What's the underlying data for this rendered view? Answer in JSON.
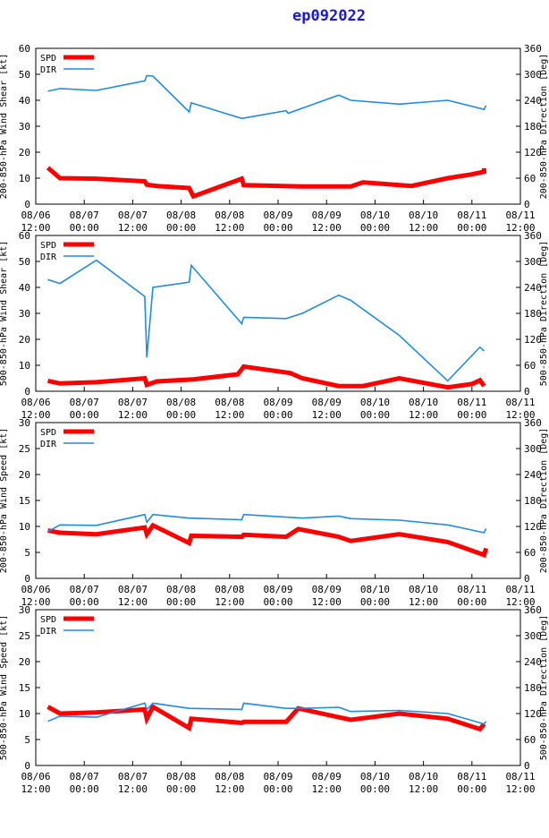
{
  "title": "ep092022",
  "colors": {
    "spd": "#ff0000",
    "dir": "#1e8ce6",
    "axis": "#000000",
    "title": "#1a1ad6"
  },
  "x_ticks": [
    {
      "t": 0,
      "l1": "08/06",
      "l2": "12:00"
    },
    {
      "t": 12,
      "l1": "08/07",
      "l2": "00:00"
    },
    {
      "t": 24,
      "l1": "08/07",
      "l2": "12:00"
    },
    {
      "t": 36,
      "l1": "08/08",
      "l2": "00:00"
    },
    {
      "t": 48,
      "l1": "08/08",
      "l2": "12:00"
    },
    {
      "t": 60,
      "l1": "08/09",
      "l2": "00:00"
    },
    {
      "t": 72,
      "l1": "08/09",
      "l2": "12:00"
    },
    {
      "t": 84,
      "l1": "08/10",
      "l2": "00:00"
    },
    {
      "t": 96,
      "l1": "08/10",
      "l2": "12:00"
    },
    {
      "t": 108,
      "l1": "08/11",
      "l2": "00:00"
    },
    {
      "t": 120,
      "l1": "08/11",
      "l2": "12:00"
    }
  ],
  "chart_data": [
    {
      "type": "line",
      "title": "200-850-hPa Wind Shear",
      "ylabel": "200-850-hPa Wind Shear [kt]",
      "y2label": "200-850-hPa Direction [Deg]",
      "xlim": [
        0,
        120
      ],
      "ylim": [
        0,
        60
      ],
      "y2lim": [
        0,
        360
      ],
      "yticks": [
        0,
        10,
        20,
        30,
        40,
        50,
        60
      ],
      "y2ticks": [
        0,
        60,
        120,
        180,
        240,
        300,
        360
      ],
      "legend": [
        "SPD",
        "DIR"
      ],
      "series": [
        {
          "name": "SPD",
          "axis": "left",
          "x": [
            3,
            6,
            15,
            27,
            27.5,
            30,
            38,
            39,
            51,
            51.5,
            66,
            78,
            81,
            93,
            102,
            108,
            111,
            111
          ],
          "y": [
            14,
            10,
            9.8,
            8.8,
            7.5,
            7,
            6.2,
            3,
            9.8,
            7.3,
            6.8,
            6.8,
            8.4,
            7,
            10,
            11.5,
            12.5,
            13.8
          ]
        },
        {
          "name": "DIR",
          "axis": "left",
          "x": [
            3,
            6,
            15,
            27,
            27.5,
            29,
            38,
            38.5,
            51,
            62,
            62.5,
            75,
            78,
            90,
            102,
            111,
            111.5
          ],
          "y": [
            43.5,
            44.5,
            43.8,
            47.5,
            49.5,
            49.3,
            35.5,
            39,
            33,
            36,
            35,
            42,
            40,
            38.5,
            40,
            36.5,
            38
          ]
        }
      ]
    },
    {
      "type": "line",
      "title": "500-850-hPa Wind Shear",
      "ylabel": "500-850-hPa Wind Shear [kt]",
      "y2label": "500-850-hPa Direction [Deg]",
      "xlim": [
        0,
        120
      ],
      "ylim": [
        0,
        60
      ],
      "y2lim": [
        0,
        360
      ],
      "yticks": [
        0,
        10,
        20,
        30,
        40,
        50,
        60
      ],
      "y2ticks": [
        0,
        60,
        120,
        180,
        240,
        300,
        360
      ],
      "legend": [
        "SPD",
        "DIR"
      ],
      "series": [
        {
          "name": "SPD",
          "axis": "left",
          "x": [
            3,
            6,
            15,
            27,
            27.5,
            30,
            39,
            50,
            51,
            51.5,
            63,
            66,
            75,
            81,
            90,
            102,
            108,
            110,
            111
          ],
          "y": [
            4,
            3,
            3.5,
            5,
            2.5,
            3.8,
            4.6,
            6.5,
            8.5,
            9.5,
            7,
            5,
            2,
            2,
            5,
            1.5,
            2.8,
            4.2,
            2
          ]
        },
        {
          "name": "DIR",
          "axis": "left",
          "x": [
            3,
            6,
            15,
            27,
            27.5,
            29,
            38,
            38.5,
            51,
            51.5,
            62,
            66,
            75,
            78,
            90,
            102,
            110,
            111
          ],
          "y": [
            43,
            41.5,
            50.5,
            36.5,
            13,
            40,
            42,
            48.5,
            26,
            28.5,
            28,
            30,
            37,
            35,
            21.5,
            4,
            17,
            15.5
          ]
        }
      ]
    },
    {
      "type": "line",
      "title": "200-850-hPa Wind Speed",
      "ylabel": "200-850-hPa Wind Speed [kt]",
      "y2label": "200-850-hPa Direction [Deg]",
      "xlim": [
        0,
        120
      ],
      "ylim": [
        0,
        30
      ],
      "y2lim": [
        0,
        360
      ],
      "yticks": [
        0,
        5,
        10,
        15,
        20,
        25,
        30
      ],
      "y2ticks": [
        0,
        60,
        120,
        180,
        240,
        300,
        360
      ],
      "legend": [
        "SPD",
        "DIR"
      ],
      "series": [
        {
          "name": "SPD",
          "axis": "left",
          "x": [
            3,
            6,
            15,
            27,
            27.5,
            29,
            38,
            38.5,
            51,
            51.5,
            62,
            65,
            75,
            78,
            90,
            102,
            111,
            111.5
          ],
          "y": [
            9.2,
            8.8,
            8.5,
            9.8,
            8.5,
            10.2,
            6.8,
            8.2,
            8,
            8.4,
            8,
            9.5,
            8,
            7.2,
            8.5,
            7,
            4.5,
            5.8
          ]
        },
        {
          "name": "DIR",
          "axis": "left",
          "x": [
            3,
            6,
            15,
            27,
            27.5,
            29,
            38,
            51,
            51.5,
            62,
            66,
            75,
            78,
            90,
            102,
            111,
            111.5
          ],
          "y": [
            9,
            10.3,
            10.2,
            12.3,
            10.8,
            12.3,
            11.6,
            11.3,
            12.3,
            11.8,
            11.6,
            12,
            11.5,
            11.2,
            10.3,
            8.8,
            9.6
          ]
        }
      ]
    },
    {
      "type": "line",
      "title": "500-850-hPa Wind Speed",
      "ylabel": "500-850-hPa Wind Speed [kt]",
      "y2label": "500-850-hPa Direction [Deg]",
      "xlim": [
        0,
        120
      ],
      "ylim": [
        0,
        30
      ],
      "y2lim": [
        0,
        360
      ],
      "yticks": [
        0,
        5,
        10,
        15,
        20,
        25,
        30
      ],
      "y2ticks": [
        0,
        60,
        120,
        180,
        240,
        300,
        360
      ],
      "legend": [
        "SPD",
        "DIR"
      ],
      "series": [
        {
          "name": "SPD",
          "axis": "left",
          "x": [
            3,
            6,
            15,
            27,
            27.5,
            29,
            38,
            38.5,
            51,
            51.5,
            62,
            65,
            78,
            90,
            102,
            110,
            111
          ],
          "y": [
            11.3,
            10,
            10.2,
            10.8,
            9,
            11.3,
            7.2,
            9,
            8.2,
            8.4,
            8.4,
            11,
            8.8,
            10,
            9,
            7,
            8
          ]
        },
        {
          "name": "DIR",
          "axis": "left",
          "x": [
            3,
            6,
            15,
            27,
            27.5,
            29,
            38,
            51,
            51.5,
            62,
            66,
            75,
            78,
            90,
            102,
            111,
            111.5
          ],
          "y": [
            8.5,
            9.5,
            9.3,
            12,
            10.8,
            12,
            11,
            10.8,
            12,
            11,
            11,
            11.2,
            10.4,
            10.6,
            10,
            8,
            8.5
          ]
        }
      ]
    }
  ]
}
